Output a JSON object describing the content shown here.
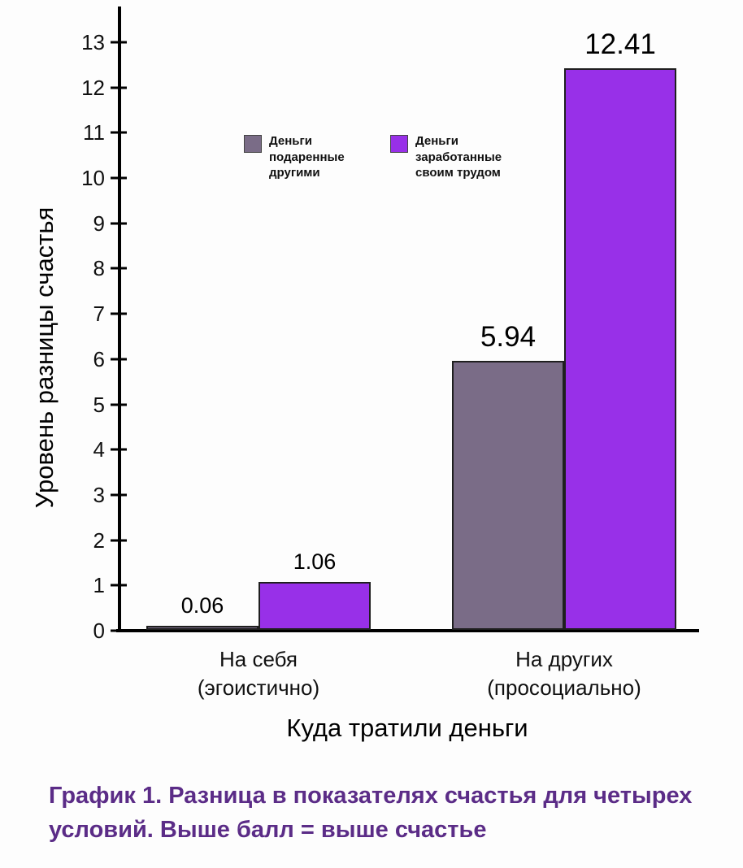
{
  "chart_data": {
    "type": "bar",
    "title": "",
    "categories": [
      "На себя\n(эгоистично)",
      "На других\n(просоциально)"
    ],
    "series": [
      {
        "name": "Деньги\nподаренные\nдругими",
        "color": "#7a6c87",
        "values": [
          0.06,
          5.94
        ]
      },
      {
        "name": "Деньги\nзаработанные\nсвоим трудом",
        "color": "#9830e8",
        "values": [
          1.06,
          12.41
        ]
      }
    ],
    "value_labels": [
      "0.06",
      "1.06",
      "5.94",
      "12.41"
    ],
    "xlabel": "Куда тратили деньги",
    "ylabel": "Уровень разницы счастья",
    "ylim": [
      0,
      13
    ],
    "yticks": [
      0,
      1,
      2,
      3,
      4,
      5,
      6,
      7,
      8,
      9,
      10,
      11,
      12,
      13
    ],
    "grid": false,
    "legend_position": "upper-left-inside",
    "axis_color": "#000000",
    "bar_border_color": "#1f1f1f"
  },
  "caption": {
    "text": "График 1. Разница в показателях счастья для четырех условий. Выше балл = выше счастье",
    "color": "#5b2c87"
  }
}
